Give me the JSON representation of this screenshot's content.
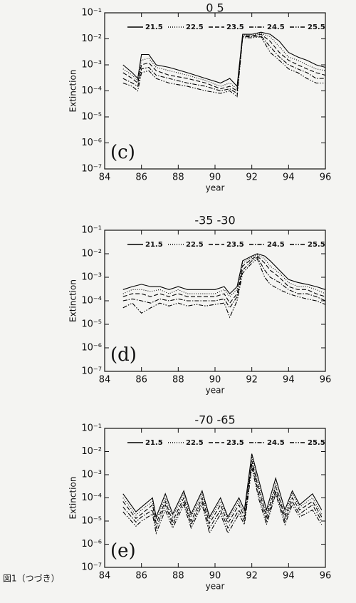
{
  "chart_data": [
    {
      "type": "line",
      "title": "0 5",
      "annotation": "(c)",
      "xlabel": "year",
      "ylabel": "Extinction",
      "yscale": "log",
      "x": [
        85,
        85.5,
        85.8,
        86,
        86.4,
        86.8,
        87.5,
        88.5,
        89.5,
        90.3,
        90.8,
        91.2,
        91.5,
        92,
        92.5,
        93,
        93.5,
        94,
        94.5,
        95,
        95.5,
        96
      ],
      "series": [
        {
          "name": "21.5",
          "color": "#000000",
          "style": "solid",
          "values": [
            0.001,
            0.0005,
            0.0003,
            0.0025,
            0.0025,
            0.001,
            0.0008,
            0.0005,
            0.0003,
            0.0002,
            0.0003,
            0.00015,
            0.015,
            0.015,
            0.018,
            0.015,
            0.008,
            0.003,
            0.002,
            0.0015,
            0.001,
            0.0008
          ]
        },
        {
          "name": "22.5",
          "color": "#000000",
          "style": "dotted",
          "values": [
            0.0007,
            0.0004,
            0.00025,
            0.0015,
            0.0018,
            0.0008,
            0.0006,
            0.0004,
            0.00025,
            0.00015,
            0.0002,
            0.00012,
            0.014,
            0.014,
            0.016,
            0.012,
            0.005,
            0.002,
            0.0015,
            0.001,
            0.0007,
            0.0006
          ]
        },
        {
          "name": "23.5",
          "color": "#000000",
          "style": "dashed",
          "values": [
            0.0005,
            0.0003,
            0.0002,
            0.001,
            0.0012,
            0.0006,
            0.0004,
            0.0003,
            0.0002,
            0.00012,
            0.00015,
            0.0001,
            0.013,
            0.013,
            0.015,
            0.008,
            0.003,
            0.0015,
            0.001,
            0.0007,
            0.0005,
            0.0004
          ]
        },
        {
          "name": "24.5",
          "color": "#000000",
          "style": "dashdot",
          "values": [
            0.0003,
            0.0002,
            0.00015,
            0.0007,
            0.0008,
            0.0004,
            0.0003,
            0.0002,
            0.00015,
            0.0001,
            0.00012,
            8e-05,
            0.012,
            0.012,
            0.013,
            0.005,
            0.002,
            0.001,
            0.0007,
            0.0005,
            0.0003,
            0.0003
          ]
        },
        {
          "name": "25.5",
          "color": "#000000",
          "style": "dashdotdot",
          "values": [
            0.0002,
            0.00015,
            0.0001,
            0.0005,
            0.0006,
            0.0003,
            0.0002,
            0.00015,
            0.0001,
            8e-05,
            0.0001,
            6e-05,
            0.011,
            0.011,
            0.012,
            0.003,
            0.0015,
            0.0007,
            0.0005,
            0.0003,
            0.0002,
            0.0002
          ]
        }
      ],
      "xlim": [
        84,
        96
      ],
      "xticks": [
        84,
        86,
        88,
        90,
        92,
        94,
        96
      ],
      "ylim": [
        1e-07,
        0.1
      ],
      "yticks": [
        {
          "value": 1e-07,
          "label": "10⁻⁷"
        },
        {
          "value": 1e-06,
          "label": "10⁻⁶"
        },
        {
          "value": 1e-05,
          "label": "10⁻⁵"
        },
        {
          "value": 0.0001,
          "label": "10⁻⁴"
        },
        {
          "value": 0.001,
          "label": "10⁻³"
        },
        {
          "value": 0.01,
          "label": "10⁻²"
        },
        {
          "value": 0.1,
          "label": "10⁻¹"
        }
      ]
    },
    {
      "type": "line",
      "title": "-35 -30",
      "annotation": "(d)",
      "xlabel": "year",
      "ylabel": "Extinction",
      "yscale": "log",
      "x": [
        85,
        85.5,
        86,
        86.5,
        87,
        87.5,
        88,
        88.5,
        89,
        89.5,
        90,
        90.5,
        90.8,
        91.2,
        91.5,
        92,
        92.3,
        92.7,
        93,
        93.5,
        94,
        94.5,
        95,
        95.5,
        96
      ],
      "series": [
        {
          "name": "21.5",
          "color": "#000000",
          "style": "solid",
          "values": [
            0.0003,
            0.0004,
            0.0005,
            0.0004,
            0.0004,
            0.0003,
            0.0004,
            0.0003,
            0.0003,
            0.0003,
            0.0003,
            0.0004,
            0.0002,
            0.0004,
            0.005,
            0.008,
            0.01,
            0.008,
            0.005,
            0.002,
            0.0008,
            0.0006,
            0.0005,
            0.0004,
            0.0003
          ]
        },
        {
          "name": "22.5",
          "color": "#000000",
          "style": "dotted",
          "values": [
            0.0002,
            0.0003,
            0.0003,
            0.00025,
            0.0003,
            0.0002,
            0.0003,
            0.0002,
            0.0002,
            0.0002,
            0.0002,
            0.0003,
            0.00015,
            0.0003,
            0.004,
            0.007,
            0.009,
            0.006,
            0.003,
            0.0015,
            0.0006,
            0.0004,
            0.0004,
            0.0003,
            0.0002
          ]
        },
        {
          "name": "23.5",
          "color": "#000000",
          "style": "dashed",
          "values": [
            0.00015,
            0.0002,
            0.0002,
            0.00015,
            0.0002,
            0.00015,
            0.0002,
            0.00015,
            0.00015,
            0.00015,
            0.00015,
            0.0002,
            8e-05,
            0.0002,
            0.003,
            0.006,
            0.008,
            0.004,
            0.002,
            0.001,
            0.0004,
            0.0003,
            0.0003,
            0.0002,
            0.00015
          ]
        },
        {
          "name": "24.5",
          "color": "#000000",
          "style": "dashdot",
          "values": [
            0.0001,
            0.00012,
            0.0001,
            8e-05,
            0.00012,
            0.0001,
            0.00012,
            0.0001,
            0.0001,
            0.0001,
            0.0001,
            0.00012,
            5e-05,
            0.00015,
            0.002,
            0.005,
            0.007,
            0.002,
            0.001,
            0.0006,
            0.0003,
            0.0002,
            0.0002,
            0.00015,
            0.0001
          ]
        },
        {
          "name": "25.5",
          "color": "#000000",
          "style": "dashdotdot",
          "values": [
            5e-05,
            8e-05,
            3e-05,
            5e-05,
            8e-05,
            6e-05,
            8e-05,
            6e-05,
            7e-05,
            6e-05,
            7e-05,
            8e-05,
            2e-05,
            0.0001,
            0.0015,
            0.004,
            0.006,
            0.001,
            0.0005,
            0.0003,
            0.0002,
            0.00015,
            0.00012,
            0.0001,
            7e-05
          ]
        }
      ],
      "xlim": [
        84,
        96
      ],
      "xticks": [
        84,
        86,
        88,
        90,
        92,
        94,
        96
      ],
      "ylim": [
        1e-07,
        0.1
      ],
      "yticks": [
        {
          "value": 1e-07,
          "label": "10⁻⁷"
        },
        {
          "value": 1e-06,
          "label": "10⁻⁶"
        },
        {
          "value": 1e-05,
          "label": "10⁻⁵"
        },
        {
          "value": 0.0001,
          "label": "10⁻⁴"
        },
        {
          "value": 0.001,
          "label": "10⁻³"
        },
        {
          "value": 0.01,
          "label": "10⁻²"
        },
        {
          "value": 0.1,
          "label": "10⁻¹"
        }
      ]
    },
    {
      "type": "line",
      "title": "-70 -65",
      "annotation": "(e)",
      "xlabel": "year",
      "ylabel": "Extinction",
      "yscale": "log",
      "x": [
        85,
        85.7,
        86,
        86.6,
        86.8,
        87.3,
        87.7,
        88.3,
        88.7,
        89.3,
        89.7,
        90.3,
        90.7,
        91.3,
        91.6,
        92,
        92.4,
        92.8,
        93.3,
        93.8,
        94.2,
        94.6,
        95.3,
        95.8
      ],
      "series": [
        {
          "name": "21.5",
          "color": "#000000",
          "style": "solid",
          "values": [
            0.00015,
            2.5e-05,
            4e-05,
            0.0001,
            1.5e-05,
            0.00015,
            2e-05,
            0.0002,
            2e-05,
            0.0002,
            1.5e-05,
            0.0001,
            1.5e-05,
            0.0001,
            3e-05,
            0.008,
            0.0005,
            3e-05,
            0.0007,
            3e-05,
            0.0002,
            5e-05,
            0.00015,
            3e-05
          ]
        },
        {
          "name": "22.5",
          "color": "#000000",
          "style": "dotted",
          "values": [
            0.0001,
            1.8e-05,
            3e-05,
            7e-05,
            1.2e-05,
            0.0001,
            1.5e-05,
            0.00015,
            1.5e-05,
            0.00015,
            1.2e-05,
            7e-05,
            1.2e-05,
            7e-05,
            2e-05,
            0.006,
            0.0003,
            2e-05,
            0.0004,
            2e-05,
            0.00015,
            4e-05,
            0.0001,
            2e-05
          ]
        },
        {
          "name": "23.5",
          "color": "#000000",
          "style": "dashed",
          "values": [
            7e-05,
            1.3e-05,
            2e-05,
            5e-05,
            8e-06,
            7e-05,
            1e-05,
            0.0001,
            1e-05,
            0.0001,
            8e-06,
            5e-05,
            8e-06,
            5e-05,
            1.5e-05,
            0.004,
            0.0002,
            1.5e-05,
            0.0003,
            1.5e-05,
            0.0001,
            3e-05,
            7e-05,
            1.5e-05
          ]
        },
        {
          "name": "24.5",
          "color": "#000000",
          "style": "dashdot",
          "values": [
            4e-05,
            9e-06,
            1.5e-05,
            3e-05,
            5e-06,
            5e-05,
            7e-06,
            7e-05,
            7e-06,
            7e-05,
            5e-06,
            3e-05,
            5e-06,
            3e-05,
            1e-05,
            0.003,
            0.00012,
            1e-05,
            0.0002,
            1e-05,
            7e-05,
            2e-05,
            5e-05,
            1e-05
          ]
        },
        {
          "name": "25.5",
          "color": "#000000",
          "style": "dashdotdot",
          "values": [
            2.5e-05,
            6e-06,
            1e-05,
            2e-05,
            3e-06,
            3e-05,
            5e-06,
            5e-05,
            5e-06,
            5e-05,
            3e-06,
            2e-05,
            3e-06,
            2e-05,
            7e-06,
            0.002,
            8e-05,
            7e-06,
            0.00015,
            7e-06,
            5e-05,
            1.5e-05,
            3e-05,
            7e-06
          ]
        }
      ],
      "xlim": [
        84,
        96
      ],
      "xticks": [
        84,
        86,
        88,
        90,
        92,
        94,
        96
      ],
      "ylim": [
        1e-07,
        0.1
      ],
      "yticks": [
        {
          "value": 1e-07,
          "label": "10⁻⁷"
        },
        {
          "value": 1e-06,
          "label": "10⁻⁶"
        },
        {
          "value": 1e-05,
          "label": "10⁻⁵"
        },
        {
          "value": 0.0001,
          "label": "10⁻⁴"
        },
        {
          "value": 0.001,
          "label": "10⁻³"
        },
        {
          "value": 0.01,
          "label": "10⁻²"
        },
        {
          "value": 0.1,
          "label": "10⁻¹"
        }
      ]
    }
  ],
  "caption": "図1（つづき）"
}
